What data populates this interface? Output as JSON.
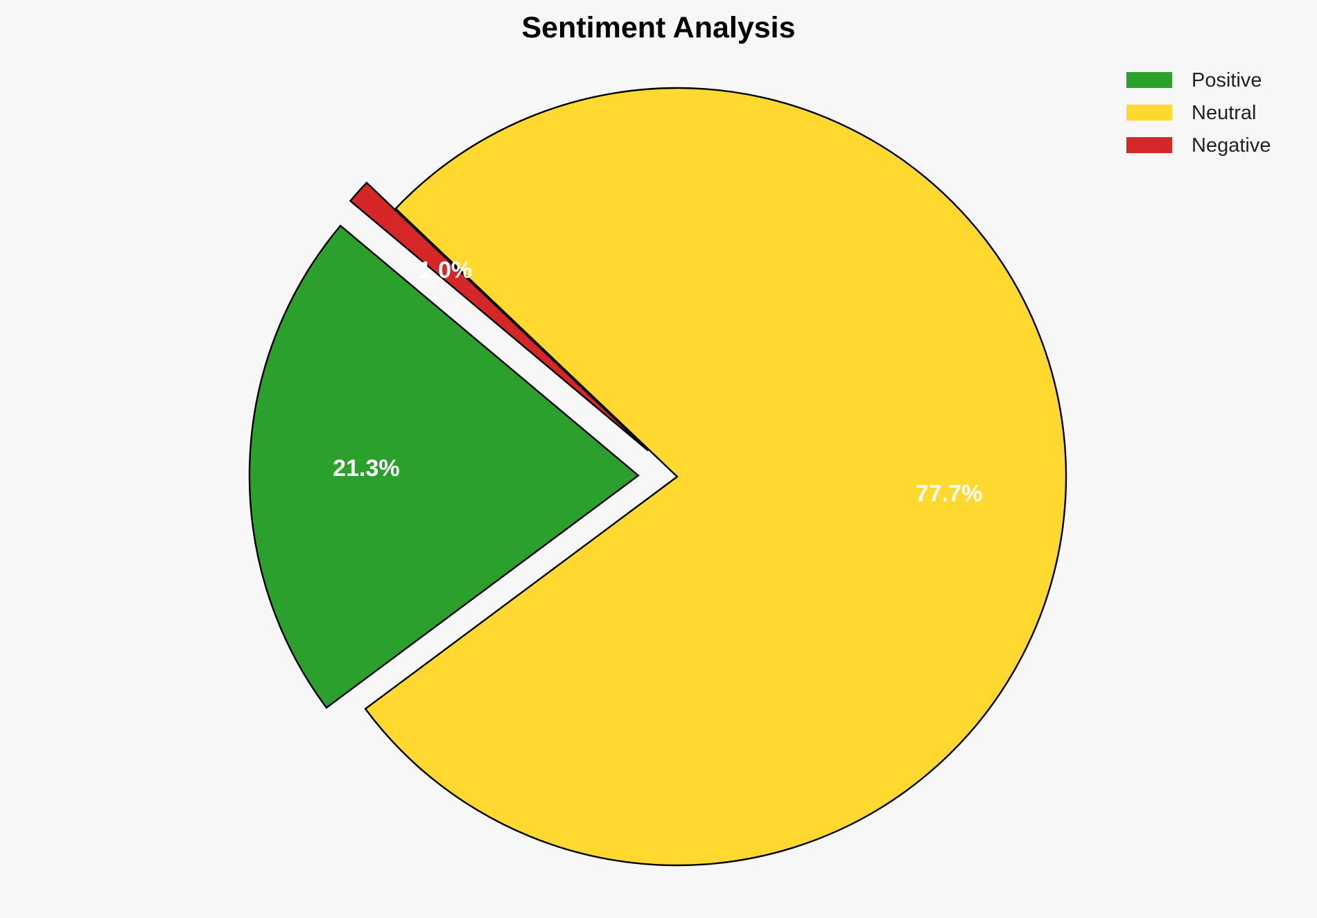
{
  "chart_data": {
    "type": "pie",
    "title": "Sentiment Analysis",
    "categories": [
      "Positive",
      "Neutral",
      "Negative"
    ],
    "values": [
      21.3,
      77.7,
      1.0
    ],
    "labels": [
      "21.3%",
      "77.7%",
      "1.0%"
    ],
    "colors": [
      "#2ca02c",
      "#ffd92f",
      "#d62728"
    ],
    "explode": [
      0.1,
      0,
      0.1
    ],
    "start_angle": 140,
    "legend": {
      "placement": "top-right",
      "entries": [
        "Positive",
        "Neutral",
        "Negative"
      ]
    }
  }
}
